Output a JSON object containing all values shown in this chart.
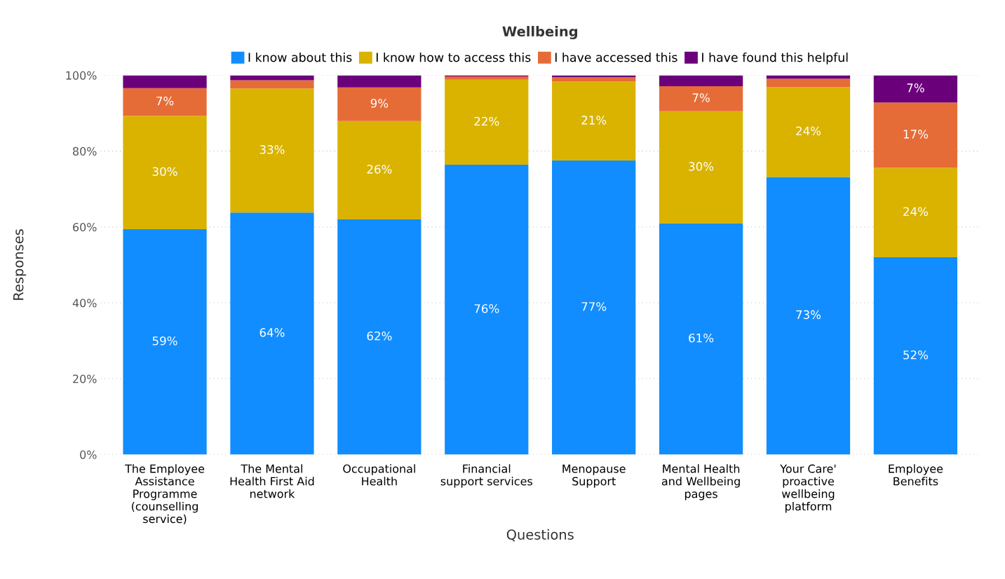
{
  "chart_data": {
    "type": "bar",
    "title": "Wellbeing",
    "xlabel": "Questions",
    "ylabel": "Responses",
    "stacked": true,
    "categories": [
      "The Employee\nAssistance\nProgramme\n(counselling\nservice)",
      "The Mental\nHealth First Aid\nnetwork",
      "Occupational\nHealth",
      "Financial\nsupport services",
      "Menopause\nSupport",
      "Mental Health\nand Wellbeing\npages",
      "Your Care'\nproactive\nwellbeing\nplatform",
      "Employee\nBenefits"
    ],
    "series": [
      {
        "name": "I know about this",
        "color": "#118dff",
        "values": [
          59.4,
          63.8,
          62.0,
          76.4,
          77.5,
          60.9,
          73.2,
          52.0
        ],
        "value_labels": [
          "59%",
          "64%",
          "62%",
          "76%",
          "77%",
          "61%",
          "73%",
          "52%"
        ]
      },
      {
        "name": "I know how to access this",
        "color": "#d9b300",
        "values": [
          29.9,
          32.7,
          25.9,
          22.4,
          20.8,
          29.6,
          23.7,
          23.6
        ],
        "value_labels": [
          "30%",
          "33%",
          "26%",
          "22%",
          "21%",
          "30%",
          "24%",
          "24%"
        ]
      },
      {
        "name": "I have accessed this",
        "color": "#e66c37",
        "values": [
          7.3,
          2.2,
          8.9,
          0.9,
          1.2,
          6.6,
          2.2,
          17.2
        ],
        "value_labels": [
          "7%",
          null,
          "9%",
          null,
          null,
          "7%",
          null,
          "17%"
        ]
      },
      {
        "name": "I have found this helpful",
        "color": "#6b007b",
        "values": [
          3.4,
          1.3,
          3.2,
          0.3,
          0.5,
          2.9,
          0.9,
          7.2
        ],
        "value_labels": [
          null,
          null,
          null,
          null,
          null,
          null,
          null,
          "7%"
        ]
      }
    ],
    "ylim": [
      0,
      100
    ],
    "yticks": [
      {
        "value": 0,
        "label": "0%"
      },
      {
        "value": 20,
        "label": "20%"
      },
      {
        "value": 40,
        "label": "40%"
      },
      {
        "value": 60,
        "label": "60%"
      },
      {
        "value": 80,
        "label": "80%"
      },
      {
        "value": 100,
        "label": "100%"
      }
    ],
    "grid": "y",
    "legend": "top"
  }
}
